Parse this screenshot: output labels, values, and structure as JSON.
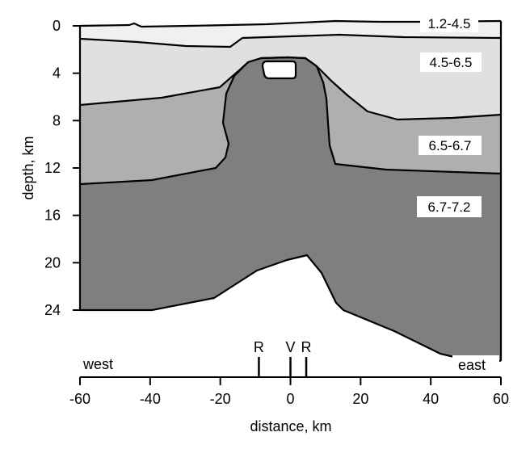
{
  "colors": {
    "layer_1": "#f0f0f0",
    "layer_2": "#e0e0e0",
    "layer_3": "#afafaf",
    "layer_4": "#7f7f7f",
    "inclusion": "#ffffff",
    "outline": "#000000"
  },
  "layers": [
    {
      "id": "layer-1-2-4-5",
      "label": "1.2-4.5"
    },
    {
      "id": "layer-4-5-6-5",
      "label": "4.5-6.5"
    },
    {
      "id": "layer-6-5-6-7",
      "label": "6.5-6.7"
    },
    {
      "id": "layer-6-7-7-2",
      "label": "6.7-7.2"
    }
  ],
  "depth_axis": {
    "label": "depth, km",
    "ticks": [
      "0",
      "4",
      "8",
      "12",
      "16",
      "20",
      "24"
    ]
  },
  "distance_axis": {
    "label": "distance, km",
    "ticks": [
      "-60",
      "-40",
      "-20",
      "0",
      "20",
      "40",
      "60"
    ]
  },
  "markers": [
    {
      "label": "R",
      "distance_km": -9
    },
    {
      "label": "V",
      "distance_km": 0
    },
    {
      "label": "R",
      "distance_km": 4.5
    }
  ],
  "directions": {
    "west": "west",
    "east": "east"
  }
}
